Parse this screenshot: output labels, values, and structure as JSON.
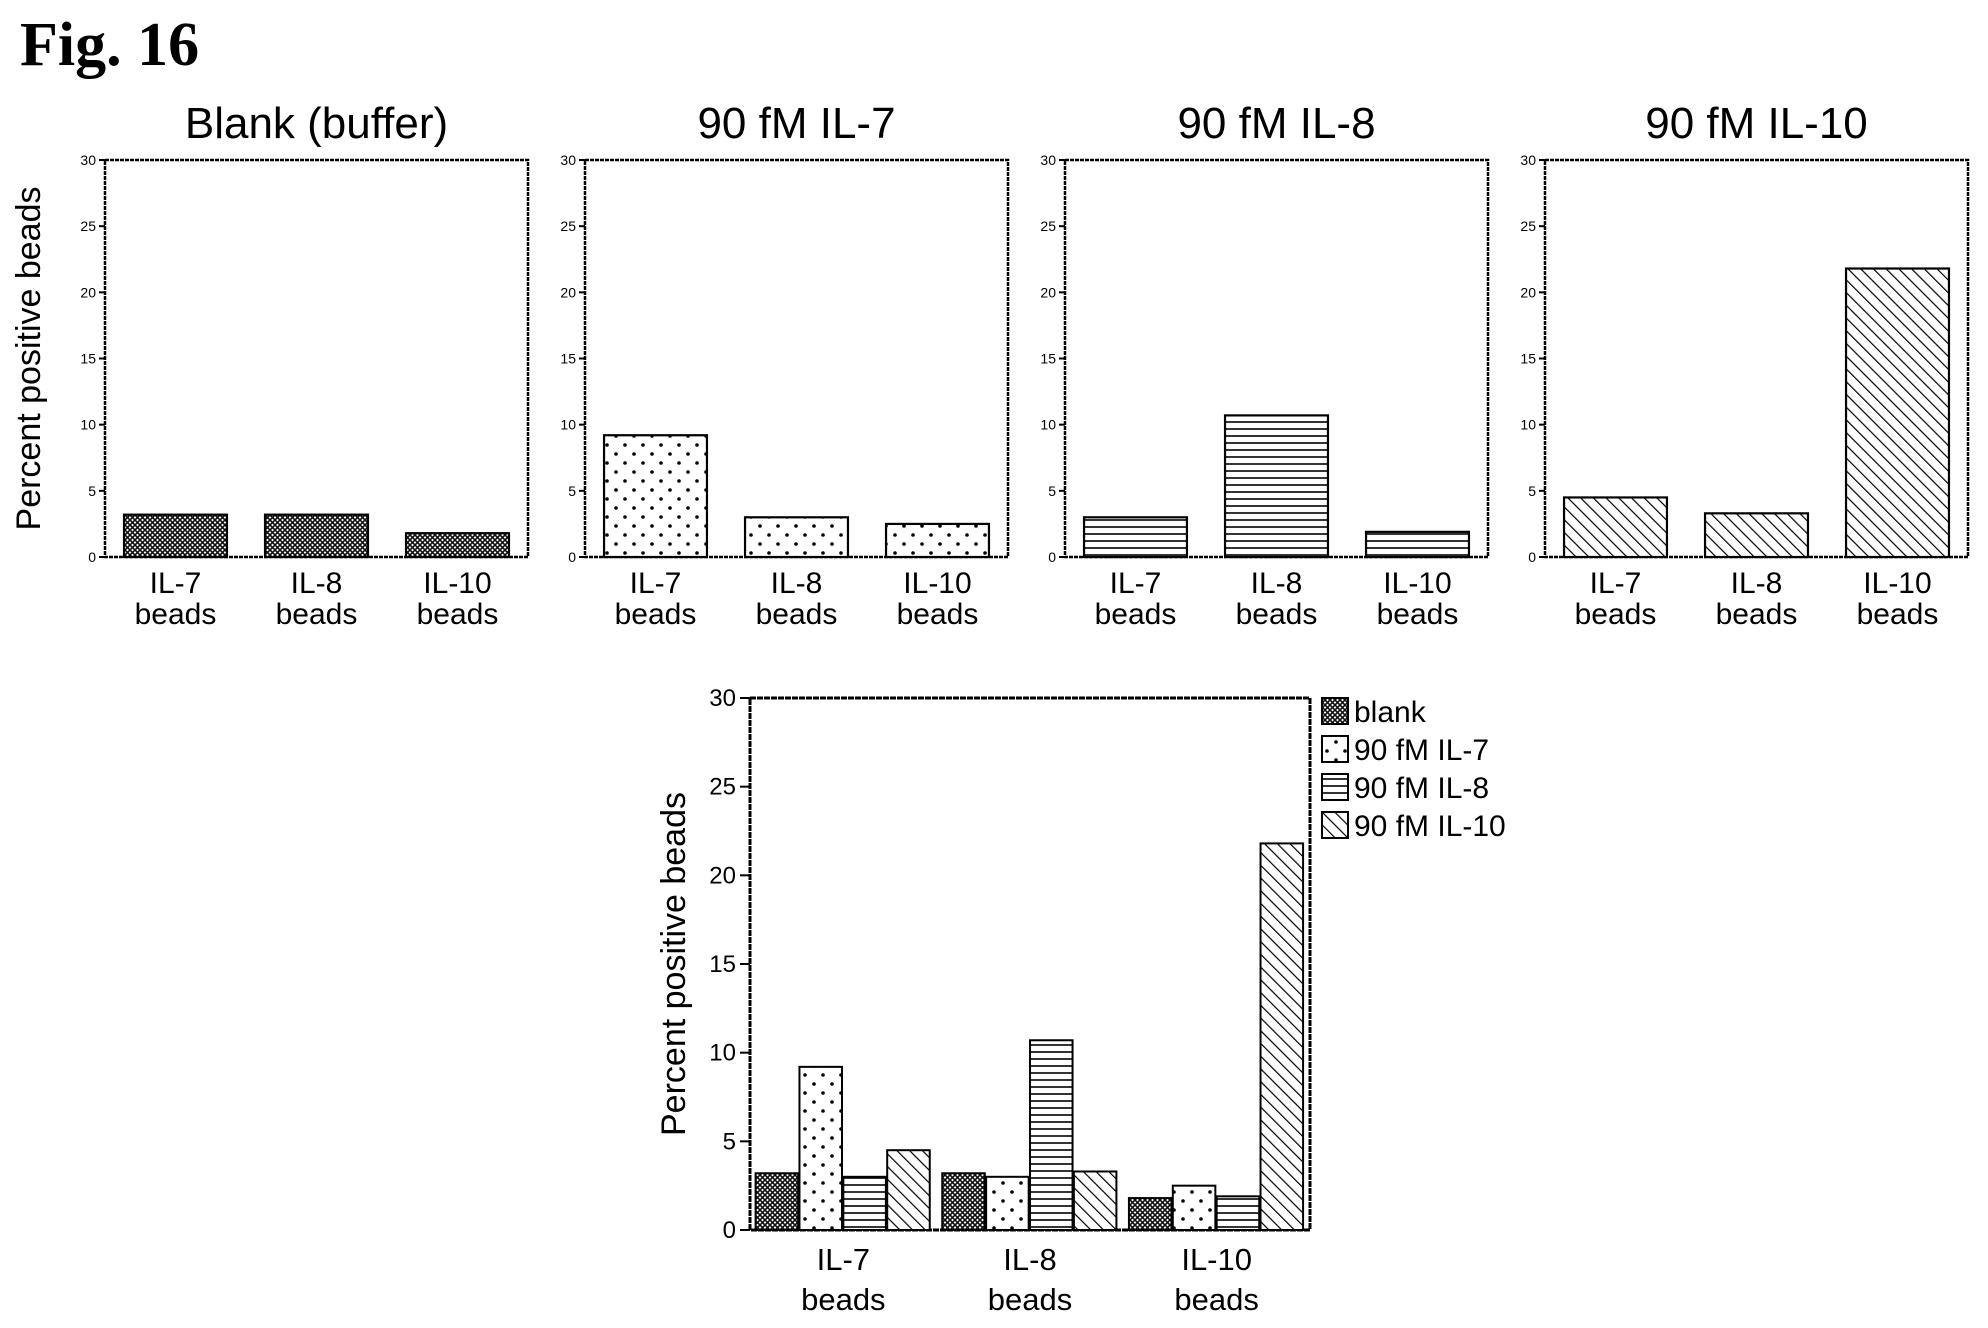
{
  "figure_label": "Fig. 16",
  "chart_data": [
    {
      "type": "bar",
      "title": "Blank (buffer)",
      "ylabel": "Percent positive beads",
      "xlabel": "",
      "categories": [
        [
          "IL-7",
          "beads"
        ],
        [
          "IL-8",
          "beads"
        ],
        [
          "IL-10",
          "beads"
        ]
      ],
      "values": [
        3.2,
        3.2,
        1.8
      ],
      "ylim": [
        0,
        30
      ],
      "yticks": [
        0,
        5,
        10,
        15,
        20,
        25,
        30
      ],
      "pattern": "crosshatch"
    },
    {
      "type": "bar",
      "title": "90 fM IL-7",
      "ylabel": "",
      "xlabel": "",
      "categories": [
        [
          "IL-7",
          "beads"
        ],
        [
          "IL-8",
          "beads"
        ],
        [
          "IL-10",
          "beads"
        ]
      ],
      "values": [
        9.2,
        3.0,
        2.5
      ],
      "ylim": [
        0,
        30
      ],
      "yticks": [
        0,
        5,
        10,
        15,
        20,
        25,
        30
      ],
      "pattern": "dots"
    },
    {
      "type": "bar",
      "title": "90 fM IL-8",
      "ylabel": "",
      "xlabel": "",
      "categories": [
        [
          "IL-7",
          "beads"
        ],
        [
          "IL-8",
          "beads"
        ],
        [
          "IL-10",
          "beads"
        ]
      ],
      "values": [
        3.0,
        10.7,
        1.9
      ],
      "ylim": [
        0,
        30
      ],
      "yticks": [
        0,
        5,
        10,
        15,
        20,
        25,
        30
      ],
      "pattern": "hlines"
    },
    {
      "type": "bar",
      "title": "90 fM IL-10",
      "ylabel": "",
      "xlabel": "",
      "categories": [
        [
          "IL-7",
          "beads"
        ],
        [
          "IL-8",
          "beads"
        ],
        [
          "IL-10",
          "beads"
        ]
      ],
      "values": [
        4.5,
        3.3,
        21.8
      ],
      "ylim": [
        0,
        30
      ],
      "yticks": [
        0,
        5,
        10,
        15,
        20,
        25,
        30
      ],
      "pattern": "diag"
    },
    {
      "type": "bar",
      "title": "",
      "ylabel": "Percent positive beads",
      "xlabel": "",
      "categories": [
        [
          "IL-7",
          "beads"
        ],
        [
          "IL-8",
          "beads"
        ],
        [
          "IL-10",
          "beads"
        ]
      ],
      "ylim": [
        0,
        30
      ],
      "yticks": [
        0,
        5,
        10,
        15,
        20,
        25,
        30
      ],
      "legend_position": "right, outside plot",
      "series": [
        {
          "name": "blank",
          "pattern": "crosshatch",
          "values": [
            3.2,
            3.2,
            1.8
          ]
        },
        {
          "name": "90 fM IL-7",
          "pattern": "dots",
          "values": [
            9.2,
            3.0,
            2.5
          ]
        },
        {
          "name": "90 fM IL-8",
          "pattern": "hlines",
          "values": [
            3.0,
            10.7,
            1.9
          ]
        },
        {
          "name": "90 fM IL-10",
          "pattern": "diag",
          "values": [
            4.5,
            3.3,
            21.8
          ]
        }
      ]
    }
  ]
}
